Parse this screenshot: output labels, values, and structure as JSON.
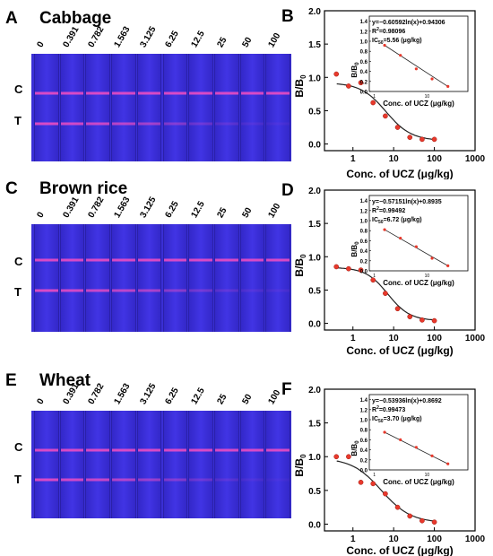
{
  "strip_panels": [
    {
      "letter": "A",
      "sample": "Cabbage",
      "c_label": "C",
      "t_label": "T",
      "t_intensity": [
        1,
        0.95,
        0.9,
        0.8,
        0.65,
        0.45,
        0.3,
        0.2,
        0.12,
        0.08
      ]
    },
    {
      "letter": "C",
      "sample": "Brown rice",
      "c_label": "C",
      "t_label": "T",
      "t_intensity": [
        1,
        0.95,
        0.9,
        0.82,
        0.7,
        0.5,
        0.35,
        0.22,
        0.14,
        0.1
      ]
    },
    {
      "letter": "E",
      "sample": "Wheat",
      "c_label": "C",
      "t_label": "T",
      "t_intensity": [
        1,
        0.95,
        0.88,
        0.75,
        0.6,
        0.45,
        0.3,
        0.18,
        0.1,
        0.06
      ]
    }
  ],
  "concentrations": [
    "0",
    "0.391",
    "0.782",
    "1.563",
    "3.125",
    "6.25",
    "12.5",
    "25",
    "50",
    "100"
  ],
  "colors": {
    "strip": "#3a2fd6",
    "band": "#ff4fc0",
    "curve": "#222222",
    "point": "#e8392c"
  },
  "chart_data": [
    {
      "type": "scatter",
      "letter": "B",
      "xlabel": "Conc. of UCZ  (μg/kg)",
      "ylabel": "B/B",
      "xscale": "log",
      "xlim": [
        0.2,
        1000
      ],
      "ylim": [
        -0.1,
        2.0
      ],
      "yticks": [
        "0.0",
        "0.5",
        "1.0",
        "1.5",
        "2.0"
      ],
      "xticks": [
        "1",
        "10",
        "100",
        "1000"
      ],
      "x": [
        0.391,
        0.782,
        1.563,
        3.125,
        6.25,
        12.5,
        25,
        50,
        100
      ],
      "y": [
        1.05,
        0.87,
        0.92,
        0.62,
        0.42,
        0.25,
        0.1,
        0.07,
        0.07
      ],
      "fit": {
        "top": 0.92,
        "bottom": 0.05,
        "ic50": 6.5,
        "hill": 1.4
      },
      "inset": {
        "equation": "y=−0.60592ln(x)+0.94306",
        "r2_label": "R",
        "r2_sup": "2",
        "r2_value": "=0.98096",
        "ic_label": "IC",
        "ic_sub": "50",
        "ic_value": "=5.56 (μg/kg)",
        "ylabel": "B/B",
        "xlabel": "Conc. of UCZ (μg/kg)",
        "yticks": [
          "0.0",
          "0.2",
          "0.4",
          "0.6",
          "0.8",
          "1.0",
          "1.2",
          "1.4"
        ],
        "xticks": [
          "1",
          "10"
        ],
        "x": [
          1.563,
          3.125,
          6.25,
          12.5,
          25
        ],
        "y": [
          0.92,
          0.72,
          0.45,
          0.25,
          0.1
        ]
      }
    },
    {
      "type": "scatter",
      "letter": "D",
      "xlabel": "Conc. of UCZ  (μg/kg)",
      "ylabel": "B/B",
      "xscale": "log",
      "xlim": [
        0.2,
        1000
      ],
      "ylim": [
        -0.1,
        2.0
      ],
      "yticks": [
        "0.0",
        "0.5",
        "1.0",
        "1.5",
        "2.0"
      ],
      "xticks": [
        "1",
        "10",
        "100",
        "1000"
      ],
      "x": [
        0.391,
        0.782,
        1.563,
        3.125,
        6.25,
        12.5,
        25,
        50,
        100
      ],
      "y": [
        0.85,
        0.82,
        0.8,
        0.65,
        0.45,
        0.22,
        0.1,
        0.05,
        0.04
      ],
      "fit": {
        "top": 0.84,
        "bottom": 0.04,
        "ic50": 7.2,
        "hill": 1.6
      },
      "inset": {
        "equation": "y=−0.57151ln(x)+0.8935",
        "r2_label": "R",
        "r2_sup": "2",
        "r2_value": "=0.99492",
        "ic_label": "IC",
        "ic_sub": "50",
        "ic_value": "=6.72 (μg/kg)",
        "ylabel": "B/B",
        "xlabel": "Conc. of UCZ (μg/kg)",
        "yticks": [
          "0.0",
          "0.2",
          "0.4",
          "0.6",
          "0.8",
          "1.0",
          "1.2",
          "1.4"
        ],
        "xticks": [
          "1",
          "10"
        ],
        "x": [
          1.563,
          3.125,
          6.25,
          12.5,
          25
        ],
        "y": [
          0.82,
          0.65,
          0.48,
          0.25,
          0.1
        ]
      }
    },
    {
      "type": "scatter",
      "letter": "F",
      "xlabel": "Conc. of UCZ  (μg/kg)",
      "ylabel": "B/B",
      "xscale": "log",
      "xlim": [
        0.2,
        1000
      ],
      "ylim": [
        -0.1,
        2.0
      ],
      "yticks": [
        "0.0",
        "0.5",
        "1.0",
        "1.5",
        "2.0"
      ],
      "xticks": [
        "1",
        "10",
        "100",
        "1000"
      ],
      "x": [
        0.391,
        0.782,
        1.563,
        3.125,
        6.25,
        12.5,
        25,
        50,
        100
      ],
      "y": [
        1.0,
        1.0,
        0.62,
        0.6,
        0.45,
        0.25,
        0.12,
        0.05,
        0.03
      ],
      "fit": {
        "top": 0.98,
        "bottom": 0.02,
        "ic50": 5.0,
        "hill": 1.2
      },
      "inset": {
        "equation": "y=−0.53936ln(x)+0.8692",
        "r2_label": "R",
        "r2_sup": "2",
        "r2_value": "=0.99473",
        "ic_label": "IC",
        "ic_sub": "50",
        "ic_value": "=3.70 (μg/kg)",
        "ylabel": "B/B",
        "xlabel": "Conc. of UCZ (μg/kg)",
        "yticks": [
          "0.0",
          "0.2",
          "0.4",
          "0.6",
          "0.8",
          "1.0",
          "1.2",
          "1.4"
        ],
        "xticks": [
          "1",
          "10"
        ],
        "x": [
          1.563,
          3.125,
          6.25,
          12.5,
          25
        ],
        "y": [
          0.75,
          0.6,
          0.45,
          0.28,
          0.12
        ]
      }
    }
  ]
}
